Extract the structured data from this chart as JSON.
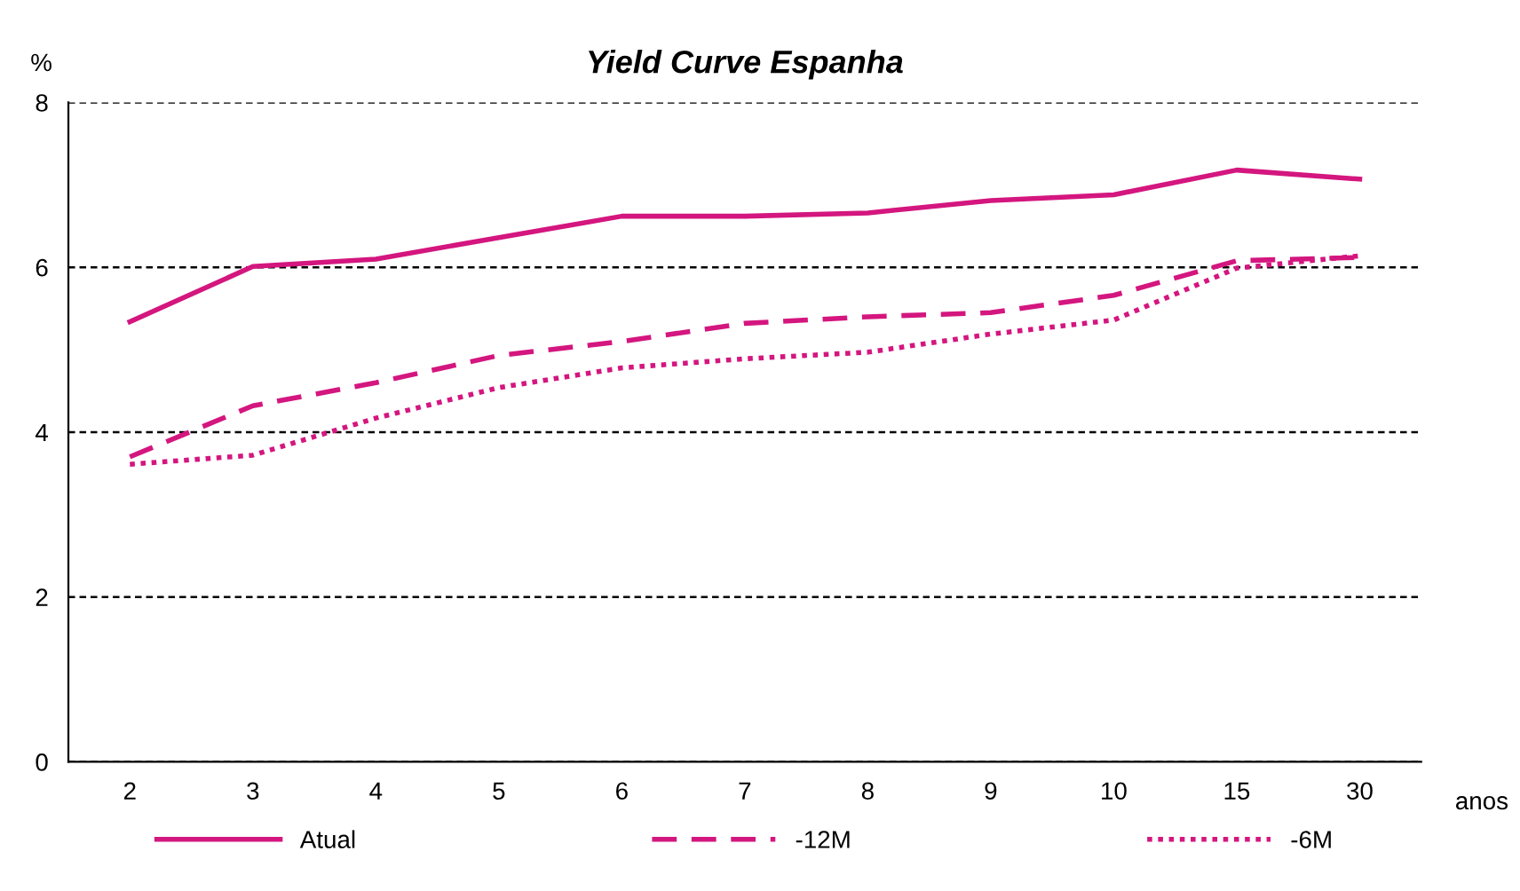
{
  "chart_data": {
    "type": "line",
    "title": "Yield Curve Espanha",
    "ylabel": "%",
    "xlabel": "anos",
    "categories": [
      "2",
      "3",
      "4",
      "5",
      "6",
      "7",
      "8",
      "9",
      "10",
      "15",
      "30"
    ],
    "series": [
      {
        "name": "Atual",
        "color": "#d4167f",
        "line_style": "solid",
        "values": [
          5.34,
          6.01,
          6.1,
          6.36,
          6.62,
          6.62,
          6.66,
          6.81,
          6.88,
          7.18,
          7.07
        ]
      },
      {
        "name": "-12M",
        "color": "#d4167f",
        "line_style": "dashed",
        "values": [
          3.7,
          4.32,
          4.6,
          4.93,
          5.1,
          5.32,
          5.4,
          5.45,
          5.66,
          6.08,
          6.12
        ]
      },
      {
        "name": "-6M",
        "color": "#d4167f",
        "line_style": "dotted",
        "values": [
          3.61,
          3.72,
          4.17,
          4.54,
          4.78,
          4.89,
          4.97,
          5.19,
          5.36,
          5.99,
          6.14
        ]
      }
    ],
    "ylim": [
      0,
      8
    ],
    "yticks": [
      0,
      2,
      4,
      6,
      8
    ],
    "grid": "y",
    "legend": "bottom",
    "marker": "none"
  }
}
